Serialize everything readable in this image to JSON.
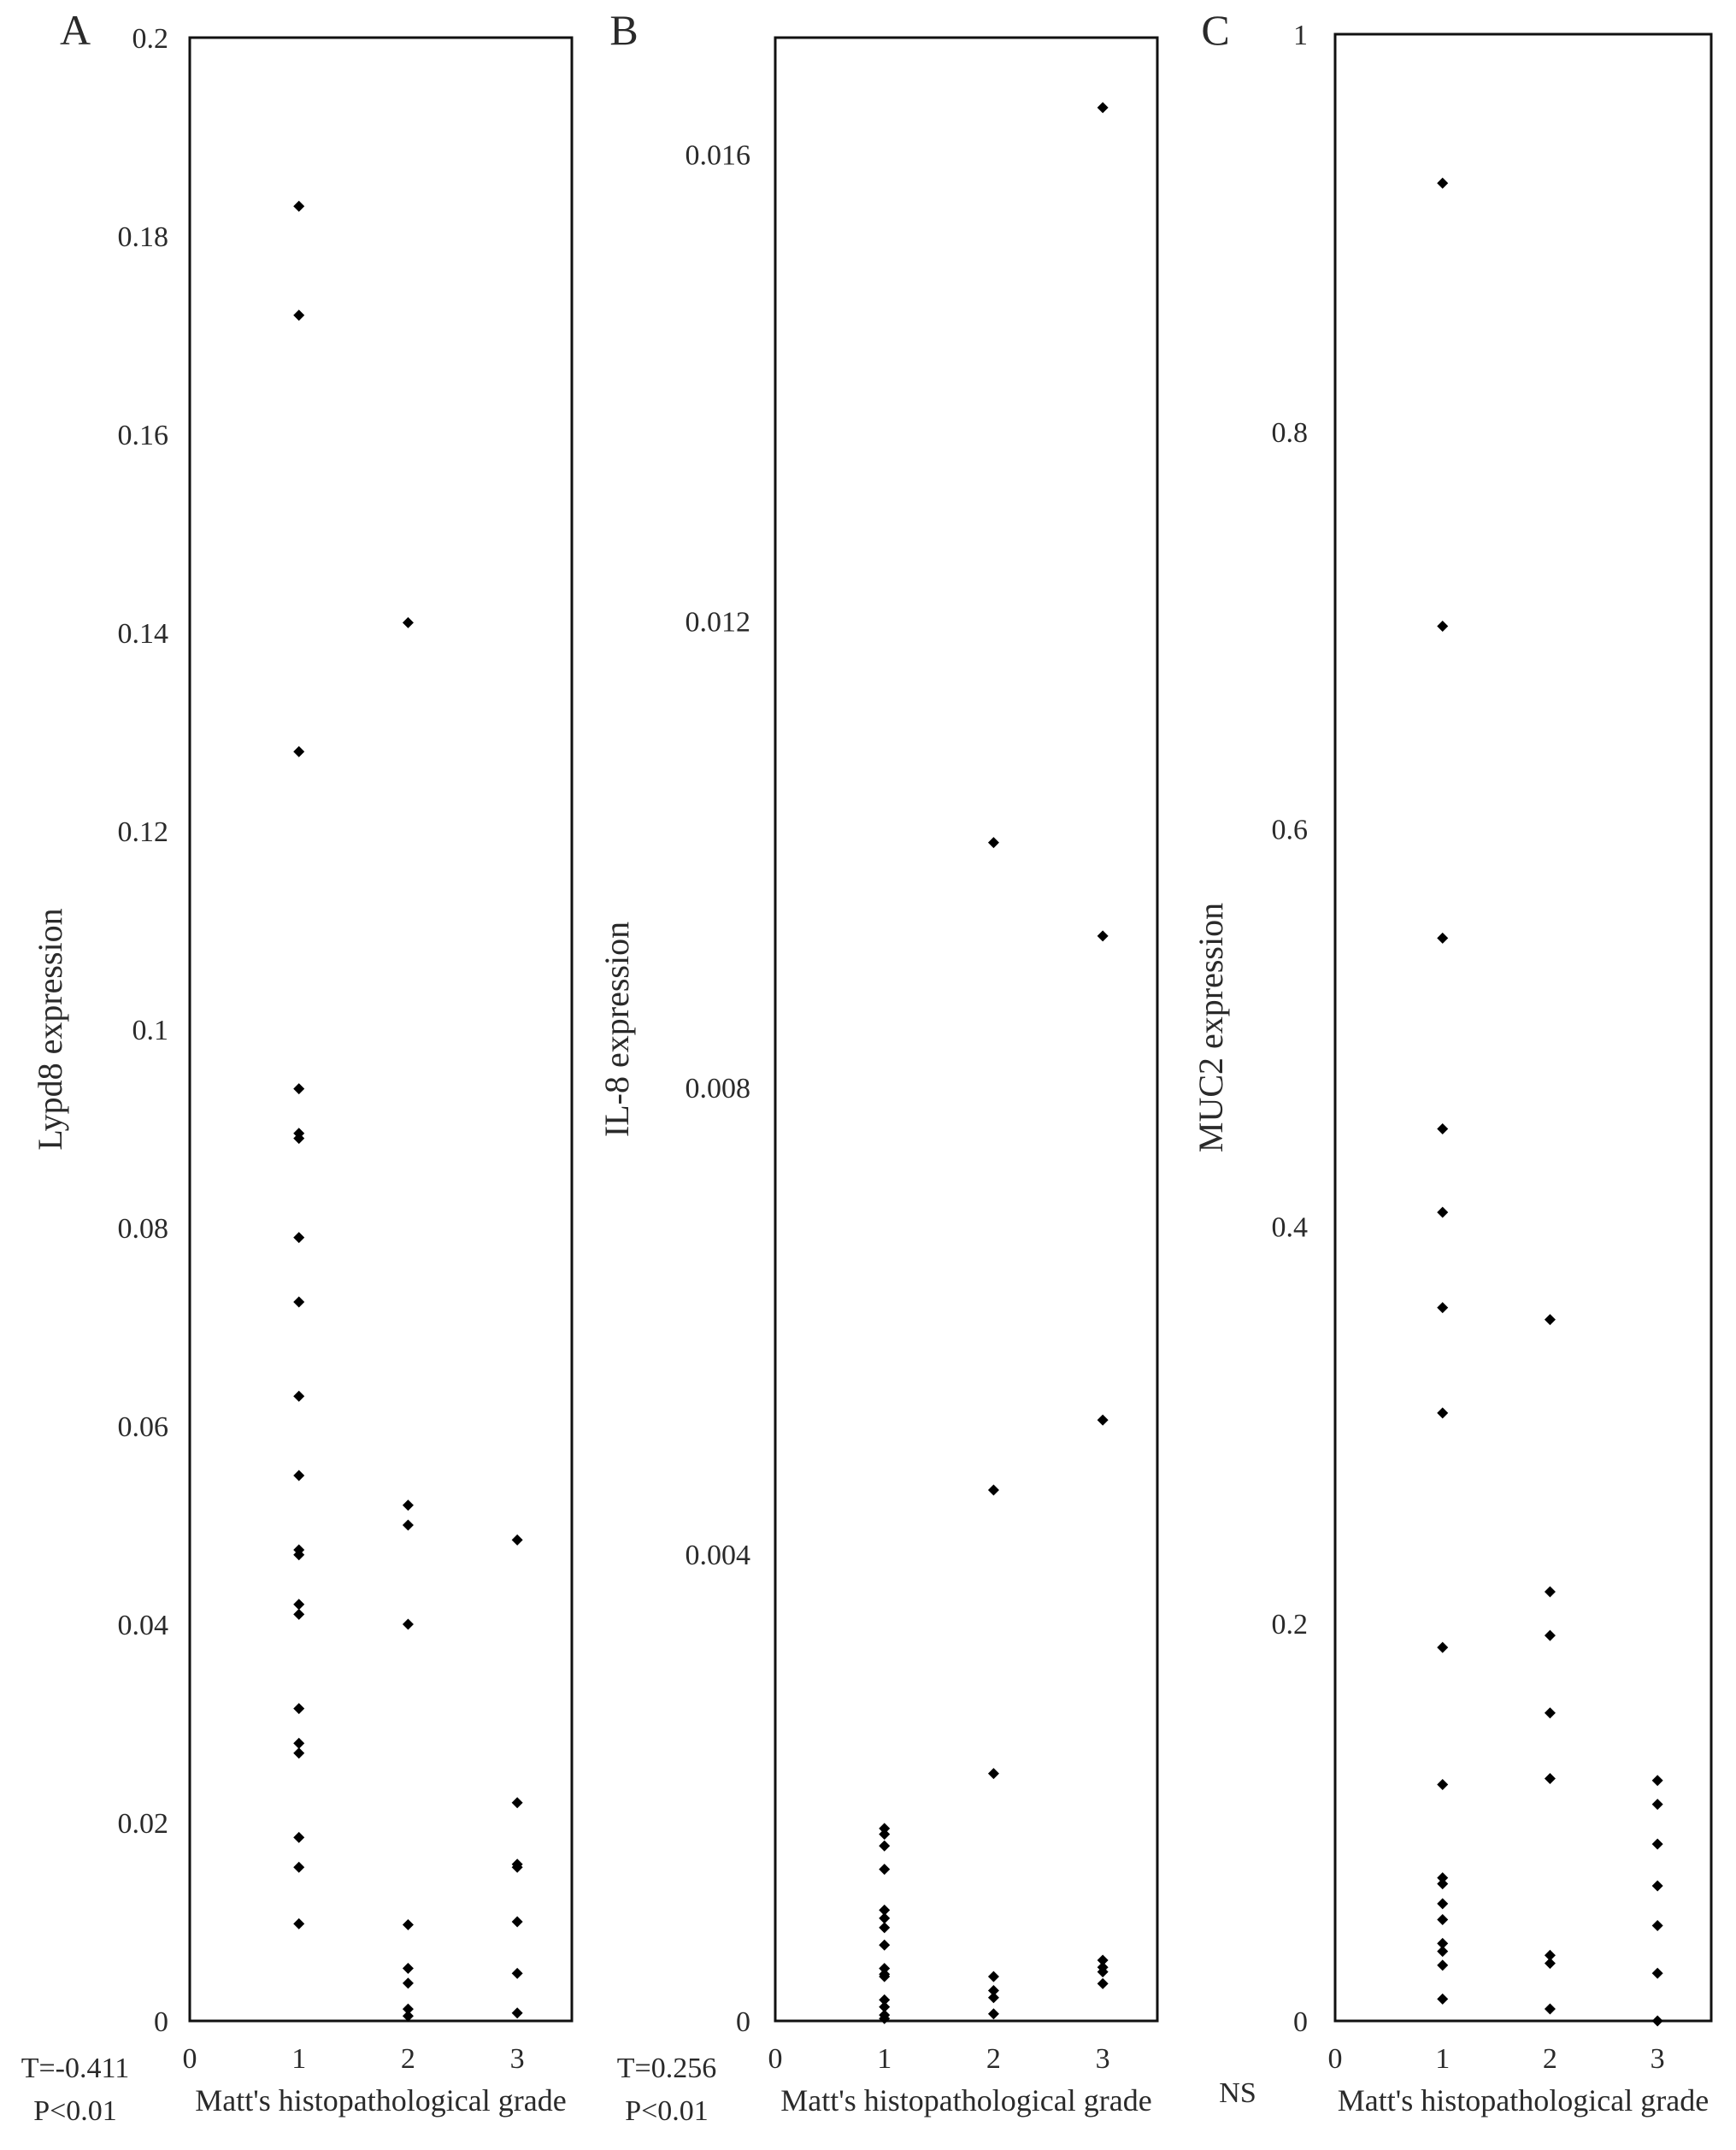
{
  "chart_data": [
    {
      "type": "scatter",
      "panel_label": "A",
      "ylabel": "Lypd8 expression",
      "xlabel": "Matt's histopathological grade",
      "xlim": [
        0,
        3.5
      ],
      "ylim": [
        0,
        0.2
      ],
      "x_ticks": [
        "0",
        "1",
        "2",
        "3"
      ],
      "y_ticks": [
        "0",
        "0.02",
        "0.04",
        "0.06",
        "0.08",
        "0.1",
        "0.12",
        "0.14",
        "0.16",
        "0.18",
        "0.2"
      ],
      "grid": false,
      "stat_lines": [
        "T=-0.411",
        "P<0.01"
      ],
      "points": [
        {
          "x": 1,
          "y": 0.183
        },
        {
          "x": 1,
          "y": 0.172
        },
        {
          "x": 1,
          "y": 0.128
        },
        {
          "x": 1,
          "y": 0.094
        },
        {
          "x": 1,
          "y": 0.0895
        },
        {
          "x": 1,
          "y": 0.089
        },
        {
          "x": 1,
          "y": 0.079
        },
        {
          "x": 1,
          "y": 0.0725
        },
        {
          "x": 1,
          "y": 0.063
        },
        {
          "x": 1,
          "y": 0.055
        },
        {
          "x": 1,
          "y": 0.0475
        },
        {
          "x": 1,
          "y": 0.047
        },
        {
          "x": 1,
          "y": 0.042
        },
        {
          "x": 1,
          "y": 0.041
        },
        {
          "x": 1,
          "y": 0.0315
        },
        {
          "x": 1,
          "y": 0.028
        },
        {
          "x": 1,
          "y": 0.027
        },
        {
          "x": 1,
          "y": 0.0185
        },
        {
          "x": 1,
          "y": 0.0155
        },
        {
          "x": 1,
          "y": 0.0098
        },
        {
          "x": 2,
          "y": 0.141
        },
        {
          "x": 2,
          "y": 0.052
        },
        {
          "x": 2,
          "y": 0.05
        },
        {
          "x": 2,
          "y": 0.04
        },
        {
          "x": 2,
          "y": 0.0097
        },
        {
          "x": 2,
          "y": 0.0053
        },
        {
          "x": 2,
          "y": 0.0038
        },
        {
          "x": 2,
          "y": 0.0012
        },
        {
          "x": 2,
          "y": 0.0005
        },
        {
          "x": 3,
          "y": 0.0485
        },
        {
          "x": 3,
          "y": 0.022
        },
        {
          "x": 3,
          "y": 0.0158
        },
        {
          "x": 3,
          "y": 0.0155
        },
        {
          "x": 3,
          "y": 0.01
        },
        {
          "x": 3,
          "y": 0.0048
        },
        {
          "x": 3,
          "y": 0.0008
        }
      ]
    },
    {
      "type": "scatter",
      "panel_label": "B",
      "ylabel": "IL-8 expression",
      "xlabel": "Matt's histopathological grade",
      "xlim": [
        0,
        3.5
      ],
      "ylim": [
        0,
        0.017
      ],
      "x_ticks": [
        "0",
        "1",
        "2",
        "3"
      ],
      "y_ticks": [
        "0",
        "0.004",
        "0.008",
        "0.012",
        "0.016"
      ],
      "grid": false,
      "stat_lines": [
        "T=0.256",
        "P<0.01"
      ],
      "points": [
        {
          "x": 1,
          "y": 0.00165
        },
        {
          "x": 1,
          "y": 0.0016
        },
        {
          "x": 1,
          "y": 0.0015
        },
        {
          "x": 1,
          "y": 0.0013
        },
        {
          "x": 1,
          "y": 0.00095
        },
        {
          "x": 1,
          "y": 0.00088
        },
        {
          "x": 1,
          "y": 0.0008
        },
        {
          "x": 1,
          "y": 0.00065
        },
        {
          "x": 1,
          "y": 0.00045
        },
        {
          "x": 1,
          "y": 0.0004
        },
        {
          "x": 1,
          "y": 0.00038
        },
        {
          "x": 1,
          "y": 0.00018
        },
        {
          "x": 1,
          "y": 0.00012
        },
        {
          "x": 1,
          "y": 5e-05
        },
        {
          "x": 1,
          "y": 2e-05
        },
        {
          "x": 2,
          "y": 0.0101
        },
        {
          "x": 2,
          "y": 0.00455
        },
        {
          "x": 2,
          "y": 0.00212
        },
        {
          "x": 2,
          "y": 0.00038
        },
        {
          "x": 2,
          "y": 0.00026
        },
        {
          "x": 2,
          "y": 0.0002
        },
        {
          "x": 2,
          "y": 6e-05
        },
        {
          "x": 3,
          "y": 0.0164
        },
        {
          "x": 3,
          "y": 0.0093
        },
        {
          "x": 3,
          "y": 0.00515
        },
        {
          "x": 3,
          "y": 0.00052
        },
        {
          "x": 3,
          "y": 0.00046
        },
        {
          "x": 3,
          "y": 0.00042
        },
        {
          "x": 3,
          "y": 0.00032
        }
      ]
    },
    {
      "type": "scatter",
      "panel_label": "C",
      "ylabel": "MUC2 expression",
      "xlabel": "Matt's histopathological grade",
      "xlim": [
        0,
        3.5
      ],
      "ylim": [
        0,
        1
      ],
      "x_ticks": [
        "0",
        "1",
        "2",
        "3"
      ],
      "y_ticks": [
        "0",
        "0.2",
        "0.4",
        "0.6",
        "0.8",
        "1"
      ],
      "grid": false,
      "stat_lines": [
        "NS"
      ],
      "points": [
        {
          "x": 1,
          "y": 0.925
        },
        {
          "x": 1,
          "y": 0.702
        },
        {
          "x": 1,
          "y": 0.545
        },
        {
          "x": 1,
          "y": 0.449
        },
        {
          "x": 1,
          "y": 0.407
        },
        {
          "x": 1,
          "y": 0.359
        },
        {
          "x": 1,
          "y": 0.306
        },
        {
          "x": 1,
          "y": 0.188
        },
        {
          "x": 1,
          "y": 0.119
        },
        {
          "x": 1,
          "y": 0.072
        },
        {
          "x": 1,
          "y": 0.069
        },
        {
          "x": 1,
          "y": 0.059
        },
        {
          "x": 1,
          "y": 0.051
        },
        {
          "x": 1,
          "y": 0.039
        },
        {
          "x": 1,
          "y": 0.035
        },
        {
          "x": 1,
          "y": 0.028
        },
        {
          "x": 1,
          "y": 0.011
        },
        {
          "x": 2,
          "y": 0.353
        },
        {
          "x": 2,
          "y": 0.216
        },
        {
          "x": 2,
          "y": 0.194
        },
        {
          "x": 2,
          "y": 0.155
        },
        {
          "x": 2,
          "y": 0.122
        },
        {
          "x": 2,
          "y": 0.033
        },
        {
          "x": 2,
          "y": 0.029
        },
        {
          "x": 2,
          "y": 0.006
        },
        {
          "x": 3,
          "y": 0.121
        },
        {
          "x": 3,
          "y": 0.109
        },
        {
          "x": 3,
          "y": 0.089
        },
        {
          "x": 3,
          "y": 0.068
        },
        {
          "x": 3,
          "y": 0.048
        },
        {
          "x": 3,
          "y": 0.024
        },
        {
          "x": 3,
          "y": 0.0
        }
      ]
    }
  ]
}
